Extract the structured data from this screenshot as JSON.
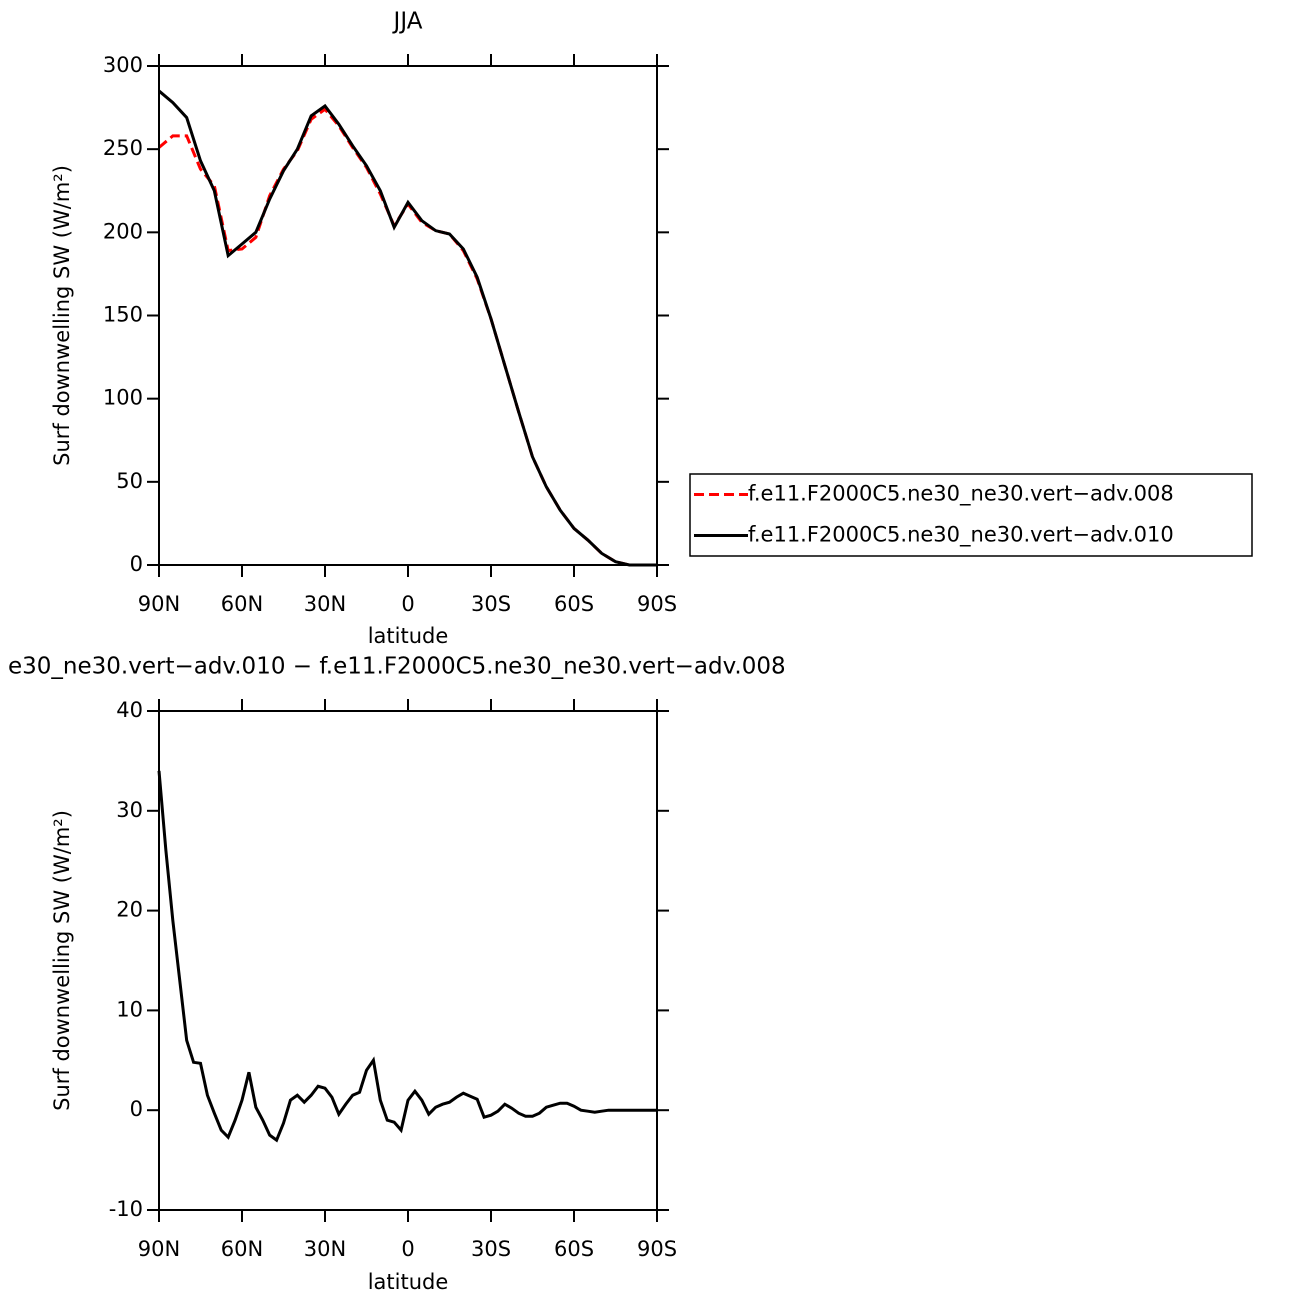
{
  "chart_data": [
    {
      "type": "line",
      "title": "JJA",
      "x_label": "latitude",
      "y_label": "Surf downwelling SW (W/m²)",
      "x": [
        90,
        85,
        80,
        75,
        70,
        65,
        60,
        55,
        50,
        45,
        40,
        35,
        30,
        25,
        20,
        15,
        10,
        5,
        0,
        -5,
        -10,
        -15,
        -20,
        -25,
        -30,
        -35,
        -40,
        -45,
        -50,
        -55,
        -60,
        -65,
        -70,
        -75,
        -80,
        -85,
        -90
      ],
      "xlim": [
        90,
        -90
      ],
      "xticks": [
        {
          "value": 90,
          "label": "90N"
        },
        {
          "value": 60,
          "label": "60N"
        },
        {
          "value": 30,
          "label": "30N"
        },
        0,
        {
          "value": -30,
          "label": "30S"
        },
        {
          "value": -60,
          "label": "60S"
        },
        {
          "value": -90,
          "label": "90S"
        }
      ],
      "ylim": [
        0,
        300
      ],
      "yticks": [
        0,
        50,
        100,
        150,
        200,
        250,
        300
      ],
      "legend": "outside-right",
      "series": [
        {
          "name": "f.e11.F2000C5.ne30_ne30.vert−adv.008",
          "color": "#ff0000",
          "linestyle": "dashed",
          "values": [
            251,
            258,
            258,
            238,
            228,
            189,
            190,
            197,
            222,
            238,
            249,
            268,
            274,
            264,
            251,
            239,
            223,
            204,
            217,
            206,
            201,
            199,
            189,
            172,
            148,
            120,
            92,
            65,
            47,
            33,
            22,
            15,
            7,
            2,
            0,
            0,
            0
          ]
        },
        {
          "name": "f.e11.F2000C5.ne30_ne30.vert−adv.010",
          "color": "#000000",
          "linestyle": "solid",
          "values": [
            285,
            278,
            269,
            243,
            225,
            186,
            193,
            200,
            220,
            237,
            250,
            270,
            276,
            265,
            252,
            240,
            225,
            203,
            218,
            207,
            201,
            199,
            190,
            173,
            148,
            120,
            92,
            65,
            47,
            33,
            22,
            15,
            7,
            2,
            0,
            0,
            0
          ]
        }
      ]
    },
    {
      "type": "line",
      "title": "e30_ne30.vert−adv.010 − f.e11.F2000C5.ne30_ne30.vert−adv.008",
      "x_label": "latitude",
      "y_label": "Surf downwelling SW (W/m²)",
      "x": [
        90,
        87.5,
        85,
        82.5,
        80,
        77.5,
        75,
        72.5,
        70,
        67.5,
        65,
        62.5,
        60,
        57.5,
        55,
        52.5,
        50,
        47.5,
        45,
        42.5,
        40,
        37.5,
        35,
        32.5,
        30,
        27.5,
        25,
        22.5,
        20,
        17.5,
        15,
        12.5,
        10,
        7.5,
        5,
        2.5,
        0,
        -2.5,
        -5,
        -7.5,
        -10,
        -12.5,
        -15,
        -17.5,
        -20,
        -22.5,
        -25,
        -27.5,
        -30,
        -32.5,
        -35,
        -37.5,
        -40,
        -42.5,
        -45,
        -47.5,
        -50,
        -52.5,
        -55,
        -57.5,
        -60,
        -62.5,
        -65,
        -67.5,
        -70,
        -72.5,
        -75,
        -77.5,
        -80,
        -82.5,
        -85,
        -87.5,
        -90
      ],
      "xlim": [
        90,
        -90
      ],
      "xticks": [
        {
          "value": 90,
          "label": "90N"
        },
        {
          "value": 60,
          "label": "60N"
        },
        {
          "value": 30,
          "label": "30N"
        },
        0,
        {
          "value": -30,
          "label": "30S"
        },
        {
          "value": -60,
          "label": "60S"
        },
        {
          "value": -90,
          "label": "90S"
        }
      ],
      "ylim": [
        -10,
        40
      ],
      "yticks": [
        -10,
        0,
        10,
        20,
        30,
        40
      ],
      "series": [
        {
          "color": "#000000",
          "linestyle": "solid",
          "values": [
            34,
            26,
            19,
            13,
            7,
            4.8,
            4.7,
            1.5,
            -0.3,
            -2,
            -2.7,
            -1,
            1,
            3.8,
            0.3,
            -1,
            -2.5,
            -3,
            -1.3,
            1,
            1.5,
            0.8,
            1.5,
            2.4,
            2.2,
            1.3,
            -0.4,
            0.6,
            1.5,
            1.8,
            4,
            5,
            1,
            -1,
            -1.2,
            -2,
            1,
            1.9,
            1,
            -0.4,
            0.3,
            0.6,
            0.8,
            1.3,
            1.7,
            1.4,
            1.1,
            -0.7,
            -0.5,
            -0.1,
            0.6,
            0.2,
            -0.3,
            -0.6,
            -0.6,
            -0.3,
            0.3,
            0.5,
            0.7,
            0.7,
            0.4,
            0,
            -0.1,
            -0.2,
            -0.1,
            0,
            0,
            0,
            0,
            0,
            0,
            0,
            0
          ]
        }
      ]
    }
  ]
}
